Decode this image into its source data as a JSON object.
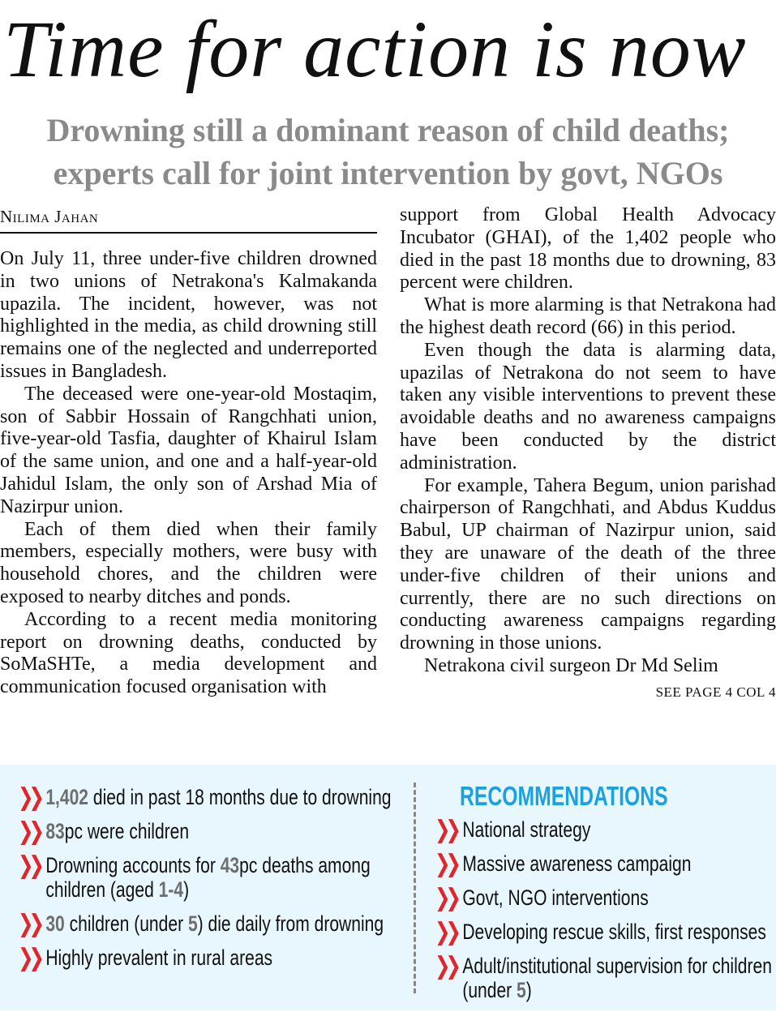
{
  "headline": "Time for action is now",
  "subheadline": "Drowning still a dominant reason of child deaths; experts call for joint intervention by govt, NGOs",
  "byline": "Nilima Jahan",
  "left_paragraphs": [
    "On July 11, three under-five children drowned in two unions of Netrakona's Kalmakanda upazila. The incident, however, was not highlighted in the media, as child drowning still remains one of the neglected and underreported issues in Bangladesh.",
    "The deceased were one-year-old Mostaqim, son of Sabbir Hossain of Rangchhati union, five-year-old Tasfia, daughter of Khairul Islam of the same union, and one and a half-year-old Jahidul Islam, the only son of Arshad Mia of Nazirpur union.",
    "Each of them died when their family members, especially mothers, were busy with household chores, and the children were exposed to nearby ditches and ponds.",
    "According to a recent media monitoring report on drowning deaths, conducted by SoMaSHTe, a media development and communication focused organisation with"
  ],
  "right_paragraphs": [
    "support from Global Health Advocacy Incubator (GHAI), of the 1,402 people who died in the past 18 months due to drowning, 83 percent were children.",
    "What is more alarming is that Netrakona had the highest death record (66) in this period.",
    "Even though the data is alarming data, upazilas of Netrakona do not seem to have taken any visible interventions to prevent these avoidable deaths and no awareness campaigns have been conducted by the district administration.",
    "For example, Tahera Begum, union parishad chairperson of Rangchhati, and Abdus Kuddus Babul, UP chairman of Nazirpur union, said they are unaware of the death of the three under-five children of their unions and currently, there are no such directions on conducting awareness campaigns regarding drowning in those unions.",
    "Netrakona civil surgeon Dr Md Selim"
  ],
  "continuation": "SEE PAGE 4 COL 4",
  "facts_box": {
    "background": "#e8f6fd",
    "bullet_icon": "double-chevron-right",
    "bullet_color": "#e0262a",
    "highlight_color": "#6d6e70",
    "facts": [
      {
        "num": "1,402",
        "text": " died in past 18 months due to drowning"
      },
      {
        "num": "83",
        "text": "pc were children"
      },
      {
        "pre": "Drowning accounts for ",
        "num": "43",
        "text": "pc deaths among children (aged ",
        "num2": "1-4",
        "post": ")"
      },
      {
        "num": "30",
        "text": " children (under ",
        "num2": "5",
        "post": ") die daily from drowning"
      },
      {
        "text": "Highly prevalent in rural areas"
      }
    ],
    "recommendations_title": "RECOMMENDATIONS",
    "title_color": "#1aa2e0",
    "recommendations": [
      {
        "text": "National strategy"
      },
      {
        "text": "Massive awareness campaign"
      },
      {
        "text": "Govt, NGO interventions"
      },
      {
        "text": "Developing rescue skills, first responses"
      },
      {
        "text": "Adult/institutional supervision for children (under ",
        "num2": "5",
        "post": ")"
      }
    ]
  }
}
